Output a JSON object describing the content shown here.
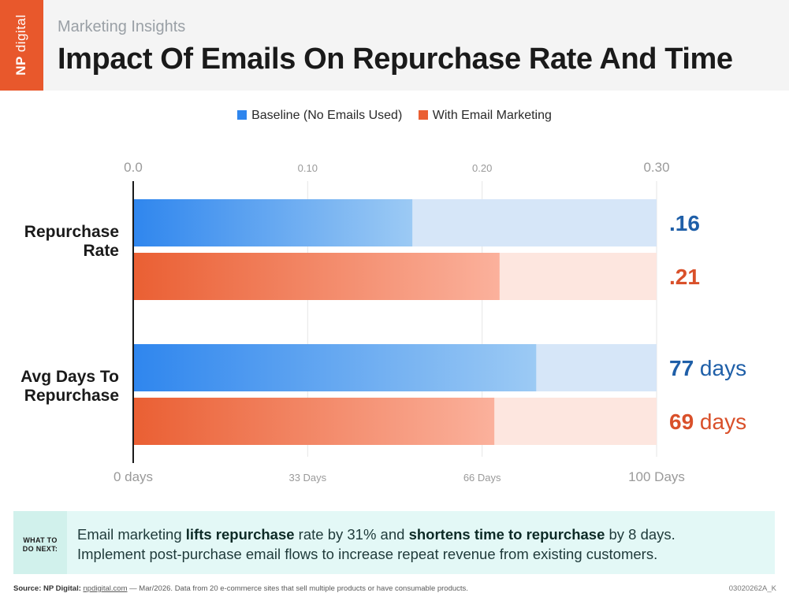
{
  "header": {
    "brand_line1": "NP",
    "brand_line2": "digital",
    "kicker": "Marketing Insights",
    "title": "Impact Of Emails On Repurchase Rate And Time"
  },
  "legend": {
    "baseline": "Baseline (No Emails Used)",
    "email": "With Email Marketing"
  },
  "chart_data": {
    "type": "bar",
    "orientation": "horizontal",
    "categories": [
      "Repurchase Rate",
      "Avg Days To Repurchase"
    ],
    "category_labels": [
      [
        "Repurchase",
        "Rate"
      ],
      [
        "Avg Days To",
        "Repurchase"
      ]
    ],
    "series": [
      {
        "name": "Baseline (No Emails Used)",
        "values": [
          0.16,
          77
        ],
        "color": "#2f86ee"
      },
      {
        "name": "With Email Marketing",
        "values": [
          0.21,
          69
        ],
        "color": "#ea5f33"
      }
    ],
    "value_labels": [
      [
        ".16",
        "77 days"
      ],
      [
        ".21",
        "69 days"
      ]
    ],
    "top_axis": {
      "range": [
        0,
        0.3
      ],
      "ticks": [
        "0.0",
        "0.10",
        "0.20",
        "0.30"
      ]
    },
    "bottom_axis": {
      "range": [
        0,
        100
      ],
      "ticks": [
        "0 days",
        "33 Days",
        "66 Days",
        "100 Days"
      ]
    },
    "grid": true
  },
  "callout": {
    "tag_line1": "WHAT TO",
    "tag_line2": "DO NEXT:",
    "p1": "Email marketing ",
    "b1": "lifts repurchase",
    "p2": " rate by 31% and ",
    "b2": "shortens time to repurchase",
    "p3": " by 8 days.",
    "line2": "Implement post-purchase email flows to increase repeat revenue from existing customers."
  },
  "footer": {
    "source_label": "Source: NP Digital:",
    "source_link": "npdigital.com",
    "source_rest": " — Mar/2026. Data from 20 e-commerce sites that sell multiple products or have consumable products.",
    "code": "03020262A_K"
  },
  "colors": {
    "brand": "#e8582c",
    "blue": "#2f86ee",
    "blue_text": "#1f5fa8",
    "orange": "#ea5f33",
    "orange_text": "#d9502a"
  }
}
